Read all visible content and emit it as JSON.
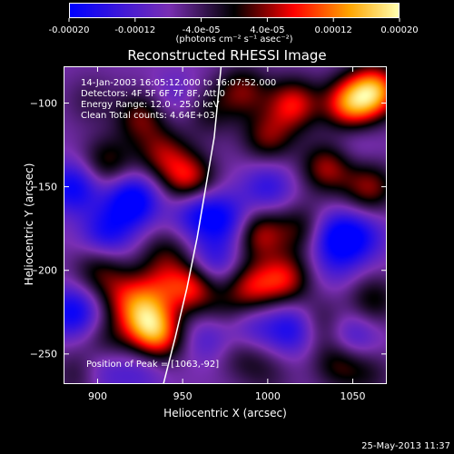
{
  "title": "Reconstructed RHESSI Image",
  "colorbar": {
    "labels": [
      "-0.00020",
      "-0.00012",
      "-4.0e-05",
      "4.0e-05",
      "0.00012",
      "0.00020"
    ],
    "values": [
      -0.0002,
      -0.00012,
      -4e-05,
      4e-05,
      0.00012,
      0.0002
    ],
    "range": [
      -0.0002,
      0.0002
    ],
    "unit_label": "(photons cm⁻² s⁻¹ asec⁻²)",
    "colors": [
      "#0000ff",
      "#7a2fb4",
      "#000000",
      "#ff0000",
      "#ffa500",
      "#ffffb0"
    ]
  },
  "annotations": {
    "time_range": "14-Jan-2003 16:05:12.000 to 16:07:52.000",
    "detectors": "Detectors: 4F 5F 6F 7F 8F, Att 0",
    "energy": "Energy Range: 12.0 - 25.0 keV",
    "clean": "Clean    Total counts: 4.64E+03",
    "peak": "Position of Peak = [1063,-92]"
  },
  "timestamp": "25-May-2013 11:37",
  "chart_data": {
    "type": "heatmap",
    "title": "Reconstructed RHESSI Image",
    "xlabel": "Heliocentric X (arcsec)",
    "ylabel": "Heliocentric Y (arcsec)",
    "xlim": [
      880,
      1070
    ],
    "ylim": [
      -268,
      -78
    ],
    "x_ticks": [
      900,
      950,
      1000,
      1050
    ],
    "y_ticks": [
      -100,
      -150,
      -200,
      -250
    ],
    "x_tick_labels": [
      "900",
      "950",
      "1000",
      "1050"
    ],
    "y_tick_labels": [
      "−100",
      "−150",
      "−200",
      "−250"
    ],
    "value_range": [
      -0.0002,
      0.0002
    ],
    "colormap": "blue-purple-black-red-orange-yellow",
    "peak_position": [
      1063,
      -92
    ],
    "limb_curve": [
      [
        938,
        -268
      ],
      [
        945,
        -240
      ],
      [
        952,
        -210
      ],
      [
        958,
        -180
      ],
      [
        963,
        -150
      ],
      [
        968,
        -120
      ],
      [
        972,
        -78
      ]
    ],
    "sources": [
      {
        "x": 1063,
        "y": -92,
        "v": 0.0002
      },
      {
        "x": 1048,
        "y": -100,
        "v": 0.00017
      },
      {
        "x": 1035,
        "y": -138,
        "v": 0.00012
      },
      {
        "x": 1060,
        "y": -150,
        "v": 0.00011
      },
      {
        "x": 1015,
        "y": -100,
        "v": 0.00014
      },
      {
        "x": 1000,
        "y": -120,
        "v": 0.0001
      },
      {
        "x": 985,
        "y": -92,
        "v": 0.0001
      },
      {
        "x": 1020,
        "y": -175,
        "v": 8e-05
      },
      {
        "x": 995,
        "y": -178,
        "v": 0.00012
      },
      {
        "x": 1010,
        "y": -205,
        "v": 0.00013
      },
      {
        "x": 990,
        "y": -210,
        "v": 0.00012
      },
      {
        "x": 965,
        "y": -105,
        "v": 6e-05
      },
      {
        "x": 953,
        "y": -145,
        "v": 0.00014
      },
      {
        "x": 938,
        "y": -130,
        "v": 0.0001
      },
      {
        "x": 925,
        "y": -108,
        "v": 0.0001
      },
      {
        "x": 905,
        "y": -135,
        "v": 9e-05
      },
      {
        "x": 895,
        "y": -98,
        "v": 4e-05
      },
      {
        "x": 940,
        "y": -190,
        "v": 7e-05
      },
      {
        "x": 955,
        "y": -210,
        "v": 0.00014
      },
      {
        "x": 935,
        "y": -210,
        "v": 8e-05
      },
      {
        "x": 915,
        "y": -215,
        "v": 9e-05
      },
      {
        "x": 900,
        "y": -200,
        "v": 8e-05
      },
      {
        "x": 927,
        "y": -228,
        "v": 0.00016
      },
      {
        "x": 935,
        "y": -240,
        "v": 0.00015
      },
      {
        "x": 905,
        "y": -243,
        "v": 6e-05
      },
      {
        "x": 890,
        "y": -262,
        "v": 8e-05
      },
      {
        "x": 1030,
        "y": -232,
        "v": 7e-05
      },
      {
        "x": 1042,
        "y": -255,
        "v": 9e-05
      },
      {
        "x": 1062,
        "y": -218,
        "v": 8e-05
      },
      {
        "x": 1060,
        "y": -262,
        "v": 5e-05
      },
      {
        "x": 985,
        "y": -250,
        "v": 6e-05
      },
      {
        "x": 975,
        "y": -225,
        "v": 5e-05
      },
      {
        "x": 1000,
        "y": -262,
        "v": 4e-05
      },
      {
        "x": 1040,
        "y": -198,
        "v": -4e-05
      },
      {
        "x": 920,
        "y": -158,
        "v": -0.00015
      },
      {
        "x": 885,
        "y": -150,
        "v": -0.00012
      },
      {
        "x": 905,
        "y": -177,
        "v": -0.0001
      },
      {
        "x": 885,
        "y": -225,
        "v": -0.00012
      },
      {
        "x": 900,
        "y": -260,
        "v": -8e-05
      },
      {
        "x": 958,
        "y": -165,
        "v": -0.0001
      },
      {
        "x": 975,
        "y": -170,
        "v": -0.0001
      },
      {
        "x": 968,
        "y": -195,
        "v": -8e-05
      },
      {
        "x": 1000,
        "y": -150,
        "v": -8e-05
      },
      {
        "x": 1040,
        "y": -180,
        "v": -0.00012
      },
      {
        "x": 1055,
        "y": -180,
        "v": -8e-05
      },
      {
        "x": 1015,
        "y": -235,
        "v": -0.00011
      },
      {
        "x": 1050,
        "y": -240,
        "v": -8e-05
      },
      {
        "x": 965,
        "y": -240,
        "v": -6e-05
      },
      {
        "x": 990,
        "y": -235,
        "v": -7e-05
      },
      {
        "x": 925,
        "y": -260,
        "v": -5e-05
      },
      {
        "x": 945,
        "y": -95,
        "v": -4e-05
      },
      {
        "x": 1050,
        "y": -125,
        "v": -3e-05
      }
    ]
  }
}
